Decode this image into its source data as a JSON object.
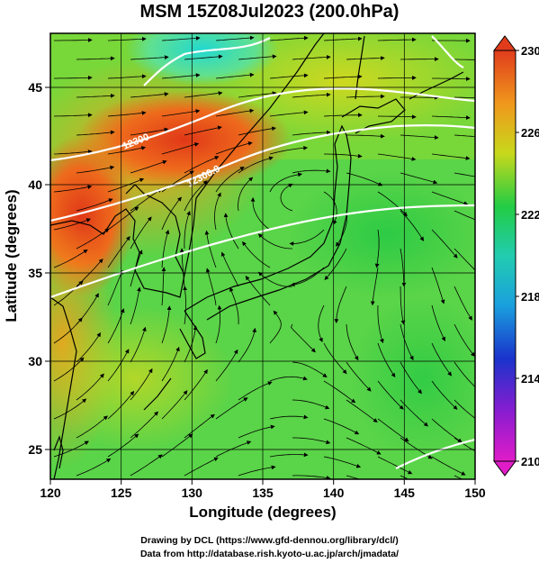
{
  "title": "MSM 15Z08Jul2023 (200.0hPa)",
  "x_axis": {
    "label": "Longitude (degrees)",
    "range": [
      120,
      150
    ],
    "ticks": [
      "120",
      "125",
      "130",
      "135",
      "140",
      "145",
      "150"
    ]
  },
  "y_axis": {
    "label": "Latitude  (degrees)",
    "range": [
      22.4,
      47.6
    ],
    "ticks": [
      "25",
      "30",
      "35",
      "40",
      "45"
    ]
  },
  "colorbar": {
    "range": [
      210,
      230
    ],
    "ticks": [
      "230",
      "226",
      "222",
      "218",
      "214",
      "210"
    ]
  },
  "contour_labels": [
    "12300",
    "12300.0"
  ],
  "credits": {
    "line1": "Drawing by DCL (https://www.gfd-dennou.org/library/dcl/)",
    "line2": "Data from http://database.rish.kyoto-u.ac.jp/arch/jmadata/"
  },
  "colors": {
    "cold": "#d633c7",
    "cool": "#1a33cc",
    "cyan": "#22ccdd",
    "green": "#22cc44",
    "yellow": "#ddd41c",
    "warm": "#f08a1c",
    "hot": "#e03c1c",
    "contour": "#ffffff",
    "coast": "#000000"
  }
}
